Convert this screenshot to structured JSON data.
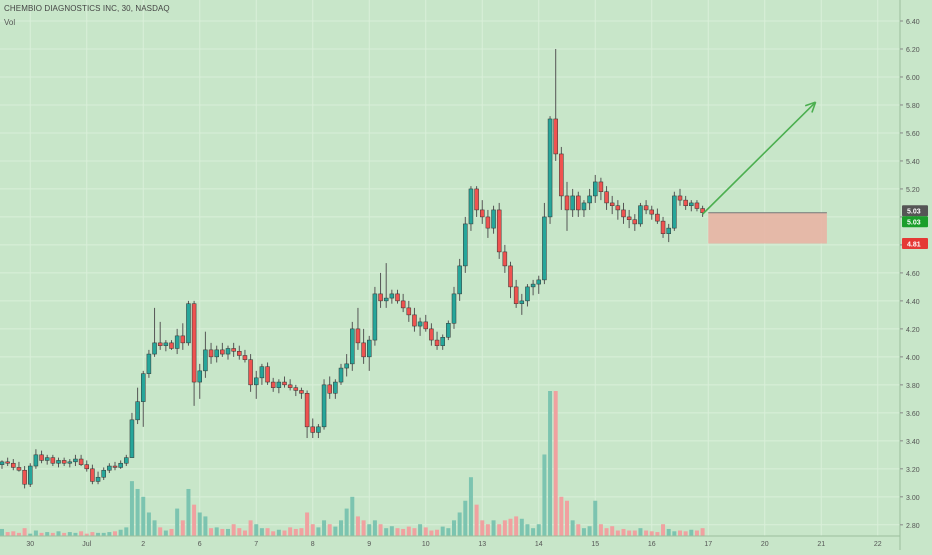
{
  "header": {
    "title": "CHEMBIO DIAGNOSTICS INC, 30, NASDAQ",
    "vol_label": "Vol"
  },
  "colors": {
    "background": "#c8e6c9",
    "grid": "#d9efd9",
    "up": "#26a69a",
    "down": "#ef5350",
    "wick": "#555555",
    "volume_up": "#7cc4b0",
    "volume_down": "#f0a1a0",
    "projection_arrow": "#4caf50",
    "risk_box": "#e8b4a4",
    "last_price_badge": "#555555",
    "current_price_badge": "#1b9e2b",
    "stop_price_badge": "#e53935"
  },
  "chart_data": {
    "type": "candlestick",
    "symbol": "CHEMBIO DIAGNOSTICS INC",
    "interval": "30",
    "exchange": "NASDAQ",
    "y_axis": {
      "ticks": [
        2.8,
        3.0,
        3.2,
        3.4,
        3.6,
        3.8,
        4.0,
        4.2,
        4.4,
        4.6,
        4.8,
        5.0,
        5.2,
        5.4,
        5.6,
        5.8,
        6.0,
        6.2,
        6.4
      ],
      "range": [
        2.72,
        6.55
      ],
      "price_labels": [
        {
          "value": 5.03,
          "text": "5.03",
          "color": "last_price_badge"
        },
        {
          "value": 5.03,
          "text": "5.03",
          "color": "current_price_badge"
        },
        {
          "value": 4.81,
          "text": "4.81",
          "color": "stop_price_badge"
        }
      ]
    },
    "x_axis": {
      "labels": [
        "30",
        "Jul",
        "2",
        "6",
        "7",
        "8",
        "9",
        "10",
        "13",
        "14",
        "15",
        "16",
        "17",
        "20",
        "21",
        "22"
      ],
      "label_bar_index": [
        5,
        15,
        25,
        35,
        45,
        55,
        65,
        75,
        85,
        95,
        105,
        115,
        125,
        135,
        145,
        155
      ]
    },
    "candles": [
      [
        3.23,
        3.26,
        3.2,
        3.25
      ],
      [
        3.25,
        3.28,
        3.22,
        3.24
      ],
      [
        3.24,
        3.27,
        3.19,
        3.21
      ],
      [
        3.21,
        3.25,
        3.18,
        3.19
      ],
      [
        3.19,
        3.22,
        3.06,
        3.09
      ],
      [
        3.09,
        3.24,
        3.07,
        3.22
      ],
      [
        3.22,
        3.34,
        3.2,
        3.3
      ],
      [
        3.3,
        3.33,
        3.24,
        3.26
      ],
      [
        3.26,
        3.3,
        3.23,
        3.28
      ],
      [
        3.28,
        3.3,
        3.22,
        3.24
      ],
      [
        3.24,
        3.28,
        3.21,
        3.26
      ],
      [
        3.26,
        3.28,
        3.22,
        3.24
      ],
      [
        3.24,
        3.27,
        3.21,
        3.25
      ],
      [
        3.25,
        3.3,
        3.22,
        3.27
      ],
      [
        3.27,
        3.3,
        3.22,
        3.23
      ],
      [
        3.23,
        3.26,
        3.18,
        3.2
      ],
      [
        3.2,
        3.23,
        3.09,
        3.11
      ],
      [
        3.11,
        3.18,
        3.09,
        3.14
      ],
      [
        3.14,
        3.21,
        3.12,
        3.19
      ],
      [
        3.19,
        3.24,
        3.17,
        3.22
      ],
      [
        3.22,
        3.25,
        3.19,
        3.21
      ],
      [
        3.21,
        3.26,
        3.2,
        3.24
      ],
      [
        3.24,
        3.3,
        3.22,
        3.28
      ],
      [
        3.28,
        3.6,
        3.28,
        3.55
      ],
      [
        3.55,
        3.78,
        3.52,
        3.68
      ],
      [
        3.68,
        3.9,
        3.5,
        3.88
      ],
      [
        3.88,
        4.05,
        3.85,
        4.02
      ],
      [
        4.02,
        4.35,
        4.0,
        4.1
      ],
      [
        4.1,
        4.25,
        4.05,
        4.08
      ],
      [
        4.08,
        4.12,
        4.04,
        4.1
      ],
      [
        4.1,
        4.12,
        4.05,
        4.06
      ],
      [
        4.06,
        4.2,
        4.02,
        4.15
      ],
      [
        4.15,
        4.24,
        4.05,
        4.1
      ],
      [
        4.1,
        4.4,
        4.08,
        4.38
      ],
      [
        4.38,
        4.4,
        3.65,
        3.82
      ],
      [
        3.82,
        3.95,
        3.7,
        3.9
      ],
      [
        3.9,
        4.18,
        3.85,
        4.05
      ],
      [
        4.05,
        4.1,
        3.95,
        4.0
      ],
      [
        4.0,
        4.08,
        3.96,
        4.05
      ],
      [
        4.05,
        4.1,
        4.0,
        4.02
      ],
      [
        4.02,
        4.08,
        3.98,
        4.06
      ],
      [
        4.06,
        4.1,
        4.0,
        4.04
      ],
      [
        4.04,
        4.08,
        3.98,
        4.01
      ],
      [
        4.01,
        4.05,
        3.96,
        3.98
      ],
      [
        3.98,
        4.02,
        3.75,
        3.8
      ],
      [
        3.8,
        3.9,
        3.7,
        3.85
      ],
      [
        3.85,
        3.95,
        3.8,
        3.93
      ],
      [
        3.93,
        3.96,
        3.8,
        3.82
      ],
      [
        3.82,
        3.85,
        3.75,
        3.78
      ],
      [
        3.78,
        3.84,
        3.74,
        3.82
      ],
      [
        3.82,
        3.86,
        3.78,
        3.8
      ],
      [
        3.8,
        3.84,
        3.76,
        3.78
      ],
      [
        3.78,
        3.8,
        3.72,
        3.76
      ],
      [
        3.76,
        3.78,
        3.7,
        3.74
      ],
      [
        3.74,
        3.76,
        3.42,
        3.5
      ],
      [
        3.5,
        3.56,
        3.42,
        3.46
      ],
      [
        3.46,
        3.52,
        3.42,
        3.5
      ],
      [
        3.5,
        3.84,
        3.48,
        3.8
      ],
      [
        3.8,
        3.86,
        3.7,
        3.74
      ],
      [
        3.74,
        3.84,
        3.7,
        3.82
      ],
      [
        3.82,
        3.95,
        3.8,
        3.92
      ],
      [
        3.92,
        4.02,
        3.86,
        3.95
      ],
      [
        3.95,
        4.25,
        3.9,
        4.2
      ],
      [
        4.2,
        4.35,
        4.05,
        4.1
      ],
      [
        4.1,
        4.2,
        3.95,
        4.0
      ],
      [
        4.0,
        4.15,
        3.9,
        4.12
      ],
      [
        4.12,
        4.5,
        4.08,
        4.45
      ],
      [
        4.45,
        4.6,
        4.35,
        4.4
      ],
      [
        4.4,
        4.67,
        4.35,
        4.42
      ],
      [
        4.42,
        4.48,
        4.38,
        4.45
      ],
      [
        4.45,
        4.48,
        4.38,
        4.4
      ],
      [
        4.4,
        4.45,
        4.32,
        4.35
      ],
      [
        4.35,
        4.4,
        4.25,
        4.3
      ],
      [
        4.3,
        4.35,
        4.18,
        4.22
      ],
      [
        4.22,
        4.28,
        4.15,
        4.25
      ],
      [
        4.25,
        4.3,
        4.18,
        4.2
      ],
      [
        4.2,
        4.24,
        4.08,
        4.12
      ],
      [
        4.12,
        4.18,
        4.05,
        4.08
      ],
      [
        4.08,
        4.16,
        4.05,
        4.14
      ],
      [
        4.14,
        4.26,
        4.12,
        4.24
      ],
      [
        4.24,
        4.5,
        4.2,
        4.45
      ],
      [
        4.45,
        4.7,
        4.4,
        4.65
      ],
      [
        4.65,
        5.0,
        4.6,
        4.95
      ],
      [
        4.95,
        5.22,
        4.9,
        5.2
      ],
      [
        5.2,
        5.22,
        5.0,
        5.05
      ],
      [
        5.05,
        5.12,
        4.95,
        5.0
      ],
      [
        5.0,
        5.05,
        4.85,
        4.92
      ],
      [
        4.92,
        5.08,
        4.88,
        5.05
      ],
      [
        5.05,
        5.1,
        4.7,
        4.75
      ],
      [
        4.75,
        4.8,
        4.6,
        4.65
      ],
      [
        4.65,
        4.68,
        4.42,
        4.5
      ],
      [
        4.5,
        4.55,
        4.35,
        4.38
      ],
      [
        4.38,
        4.45,
        4.3,
        4.4
      ],
      [
        4.4,
        4.52,
        4.36,
        4.5
      ],
      [
        4.5,
        4.55,
        4.44,
        4.52
      ],
      [
        4.52,
        4.58,
        4.45,
        4.55
      ],
      [
        4.55,
        5.1,
        4.52,
        5.0
      ],
      [
        5.0,
        5.72,
        4.95,
        5.7
      ],
      [
        5.7,
        6.2,
        5.4,
        5.45
      ],
      [
        5.45,
        5.5,
        5.05,
        5.15
      ],
      [
        5.15,
        5.25,
        4.9,
        5.05
      ],
      [
        5.05,
        5.2,
        5.0,
        5.15
      ],
      [
        5.15,
        5.18,
        5.0,
        5.05
      ],
      [
        5.05,
        5.12,
        5.0,
        5.1
      ],
      [
        5.1,
        5.2,
        5.05,
        5.15
      ],
      [
        5.15,
        5.3,
        5.1,
        5.25
      ],
      [
        5.25,
        5.28,
        5.12,
        5.18
      ],
      [
        5.18,
        5.22,
        5.05,
        5.1
      ],
      [
        5.1,
        5.15,
        5.02,
        5.08
      ],
      [
        5.08,
        5.12,
        4.98,
        5.05
      ],
      [
        5.05,
        5.1,
        4.95,
        5.0
      ],
      [
        5.0,
        5.05,
        4.92,
        4.98
      ],
      [
        4.98,
        5.02,
        4.9,
        4.95
      ],
      [
        4.95,
        5.1,
        4.93,
        5.08
      ],
      [
        5.08,
        5.12,
        5.02,
        5.05
      ],
      [
        5.05,
        5.08,
        4.98,
        5.02
      ],
      [
        5.02,
        5.06,
        4.95,
        4.97
      ],
      [
        4.97,
        5.0,
        4.85,
        4.88
      ],
      [
        4.88,
        4.95,
        4.82,
        4.92
      ],
      [
        4.92,
        5.18,
        4.9,
        5.15
      ],
      [
        5.15,
        5.2,
        5.08,
        5.12
      ],
      [
        5.12,
        5.15,
        5.05,
        5.08
      ],
      [
        5.08,
        5.12,
        5.04,
        5.1
      ],
      [
        5.1,
        5.12,
        5.04,
        5.06
      ],
      [
        5.06,
        5.08,
        5.0,
        5.03
      ]
    ],
    "volumes_in_thousands": [
      18,
      10,
      12,
      8,
      20,
      6,
      14,
      8,
      10,
      8,
      12,
      8,
      10,
      8,
      12,
      6,
      10,
      8,
      8,
      10,
      12,
      16,
      22,
      140,
      120,
      100,
      60,
      40,
      22,
      14,
      18,
      70,
      40,
      120,
      80,
      60,
      50,
      20,
      22,
      18,
      18,
      30,
      20,
      14,
      40,
      30,
      20,
      20,
      12,
      16,
      14,
      22,
      18,
      20,
      60,
      30,
      22,
      40,
      30,
      24,
      40,
      70,
      100,
      50,
      40,
      30,
      40,
      30,
      20,
      25,
      20,
      18,
      24,
      20,
      30,
      22,
      14,
      16,
      24,
      20,
      40,
      60,
      90,
      150,
      80,
      40,
      30,
      40,
      30,
      40,
      44,
      50,
      44,
      30,
      20,
      30,
      208,
      370,
      370,
      100,
      90,
      40,
      30,
      20,
      25,
      90,
      30,
      20,
      25,
      14,
      18,
      14,
      14,
      20,
      14,
      12,
      10,
      30,
      18,
      12,
      14,
      12,
      16,
      14,
      20
    ],
    "annotations": [
      {
        "type": "long_position",
        "entry": 5.03,
        "stop": 4.81,
        "from_bar": 125,
        "to_bar": 146
      },
      {
        "type": "arrow",
        "from_bar": 124,
        "from_price": 5.02,
        "to_bar": 144,
        "to_price": 5.82
      }
    ]
  }
}
